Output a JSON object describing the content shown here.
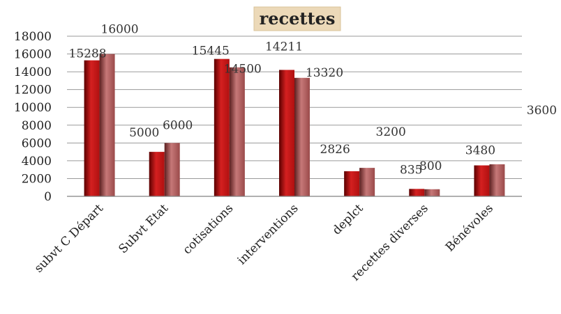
{
  "chart_data": {
    "type": "bar",
    "title": "recettes",
    "categories": [
      "subvt C Départ",
      "Subvt Etat",
      "cotisations",
      "interventions",
      "deplct",
      "recettes diverses",
      "Bénévoles"
    ],
    "series": [
      {
        "values": [
          15288,
          5000,
          15445,
          14211,
          2826,
          835,
          3480
        ]
      },
      {
        "values": [
          16000,
          6000,
          14500,
          13320,
          3200,
          800,
          3600
        ]
      }
    ],
    "ylim": [
      0,
      18000
    ],
    "yticks": [
      0,
      2000,
      4000,
      6000,
      8000,
      10000,
      12000,
      14000,
      16000,
      18000
    ],
    "grid": true,
    "legend": "none",
    "colors": {
      "series1_dark": "#5a0000",
      "series1_mid": "#b01010",
      "series1_light": "#d42020",
      "series2_dark": "#5c2020",
      "series2_mid": "#9a4a4a",
      "series2_light": "#c67878"
    }
  }
}
